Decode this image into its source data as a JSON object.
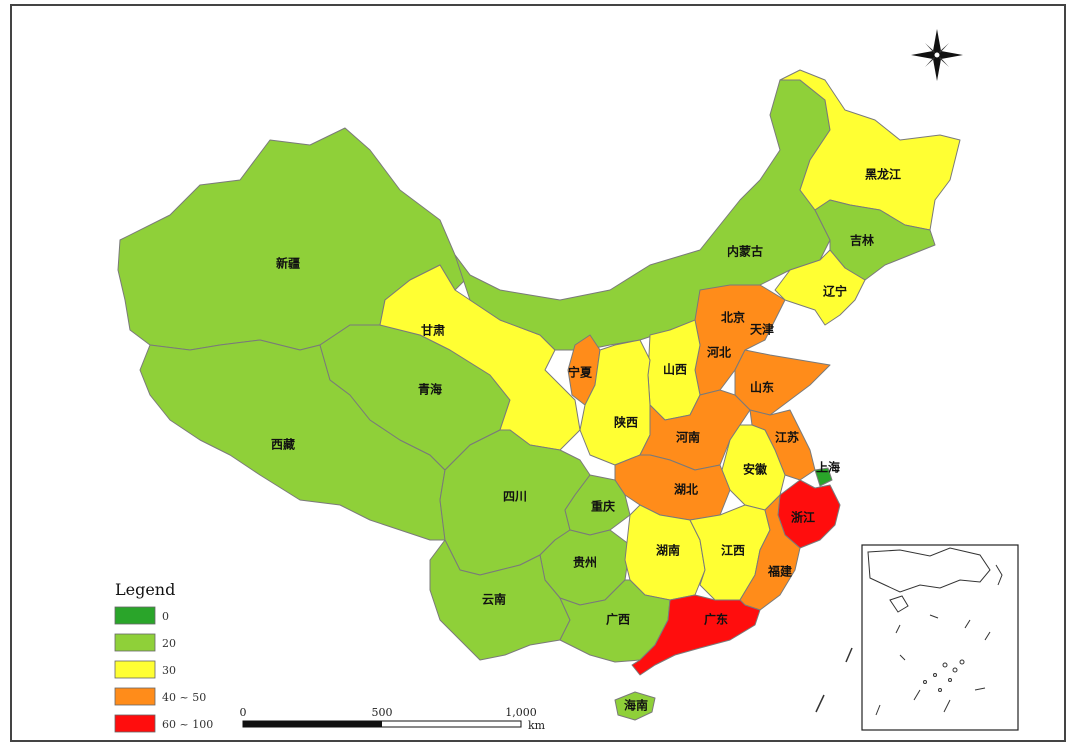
{
  "colors": {
    "c0": "#2aa52a",
    "c20": "#8fd039",
    "c30": "#ffff33",
    "c40_50": "#ff8c1a",
    "c60_100": "#ff0d0d",
    "sea": "#ffffff"
  },
  "legend": {
    "title": "Legend",
    "items": [
      {
        "label": "0",
        "color": "#2aa52a"
      },
      {
        "label": "20",
        "color": "#8fd039"
      },
      {
        "label": "30",
        "color": "#ffff33"
      },
      {
        "label": "40 ~ 50",
        "color": "#ff8c1a"
      },
      {
        "label": "60 ~ 100",
        "color": "#ff0d0d"
      }
    ]
  },
  "scale": {
    "ticks": [
      "0",
      "500",
      "1,000"
    ],
    "unit": "km"
  },
  "provinces": {
    "xinjiang": {
      "label": "新疆",
      "class": "20"
    },
    "xizang": {
      "label": "西藏",
      "class": "20"
    },
    "qinghai": {
      "label": "青海",
      "class": "20"
    },
    "gansu": {
      "label": "甘肃",
      "class": "30"
    },
    "neimenggu": {
      "label": "内蒙古",
      "class": "20"
    },
    "heilongjiang": {
      "label": "黑龙江",
      "class": "30"
    },
    "jilin": {
      "label": "吉林",
      "class": "20"
    },
    "liaoning": {
      "label": "辽宁",
      "class": "30"
    },
    "beijing": {
      "label": "北京",
      "class": "40 ~ 50"
    },
    "tianjin": {
      "label": "天津",
      "class": "30"
    },
    "hebei": {
      "label": "河北",
      "class": "40 ~ 50"
    },
    "shanxi": {
      "label": "山西",
      "class": "30"
    },
    "shandong": {
      "label": "山东",
      "class": "40 ~ 50"
    },
    "ningxia": {
      "label": "宁夏",
      "class": "40 ~ 50"
    },
    "shaanxi": {
      "label": "陕西",
      "class": "30"
    },
    "henan": {
      "label": "河南",
      "class": "40 ~ 50"
    },
    "jiangsu": {
      "label": "江苏",
      "class": "40 ~ 50"
    },
    "shanghai": {
      "label": "上海",
      "class": "0"
    },
    "anhui": {
      "label": "安徽",
      "class": "30"
    },
    "hubei": {
      "label": "湖北",
      "class": "40 ~ 50"
    },
    "zhejiang": {
      "label": "浙江",
      "class": "60 ~ 100"
    },
    "sichuan": {
      "label": "四川",
      "class": "20"
    },
    "chongqing": {
      "label": "重庆",
      "class": "20"
    },
    "guizhou": {
      "label": "贵州",
      "class": "20"
    },
    "yunnan": {
      "label": "云南",
      "class": "20"
    },
    "hunan": {
      "label": "湖南",
      "class": "30"
    },
    "jiangxi": {
      "label": "江西",
      "class": "30"
    },
    "fujian": {
      "label": "福建",
      "class": "40 ~ 50"
    },
    "guangxi": {
      "label": "广西",
      "class": "20"
    },
    "guangdong": {
      "label": "广东",
      "class": "60 ~ 100"
    },
    "hainan": {
      "label": "海南",
      "class": "20"
    }
  },
  "icons": {
    "compass": "compass-rose-icon"
  }
}
